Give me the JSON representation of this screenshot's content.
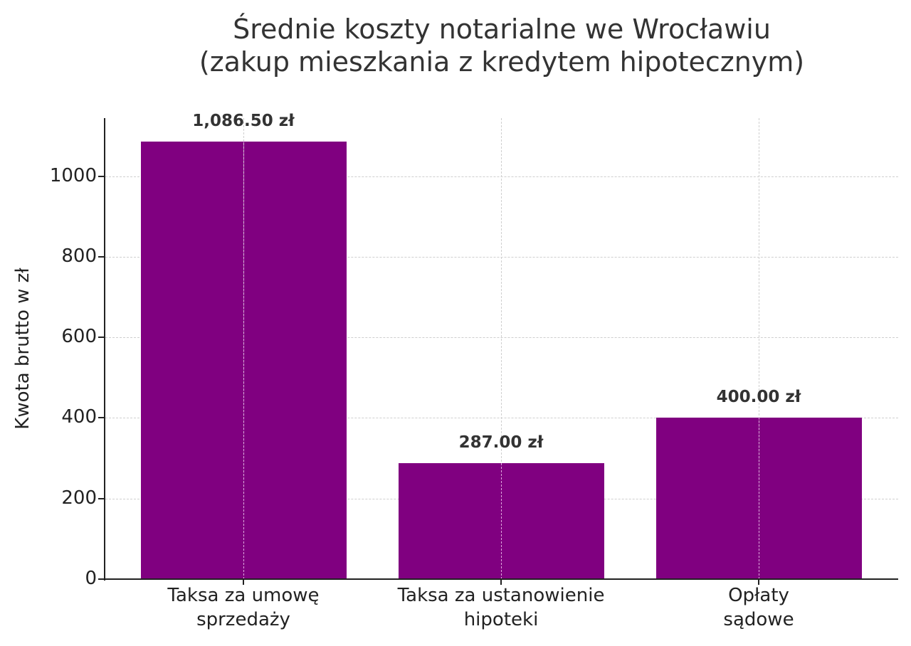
{
  "chart_data": {
    "type": "bar",
    "title": "Średnie koszty notarialne we Wrocławiu (zakup mieszkania z kredytem hipotecznym)",
    "title_lines": [
      "Średnie koszty notarialne we Wrocławiu",
      "(zakup mieszkania z kredytem hipotecznym)"
    ],
    "categories": [
      "Taksa za umowę sprzedaży",
      "Taksa za ustanowienie hipoteki",
      "Opłaty sądowe"
    ],
    "category_lines": [
      [
        "Taksa za umowę",
        "sprzedaży"
      ],
      [
        "Taksa za ustanowienie",
        "hipoteki"
      ],
      [
        "Opłaty",
        "sądowe"
      ]
    ],
    "values": [
      1086.5,
      287.0,
      400.0
    ],
    "value_labels": [
      "1,086.50 zł",
      "287.00 zł",
      "400.00 zł"
    ],
    "xlabel": "",
    "ylabel": "Kwota brutto w zł",
    "ylim": [
      0,
      1140
    ],
    "yticks": [
      0,
      200,
      400,
      600,
      800,
      1000
    ],
    "ytick_labels": [
      "0",
      "200",
      "400",
      "600",
      "800",
      "1000"
    ],
    "grid": true,
    "grid_style": "dashed",
    "bar_color": "#800080",
    "legend": null
  }
}
